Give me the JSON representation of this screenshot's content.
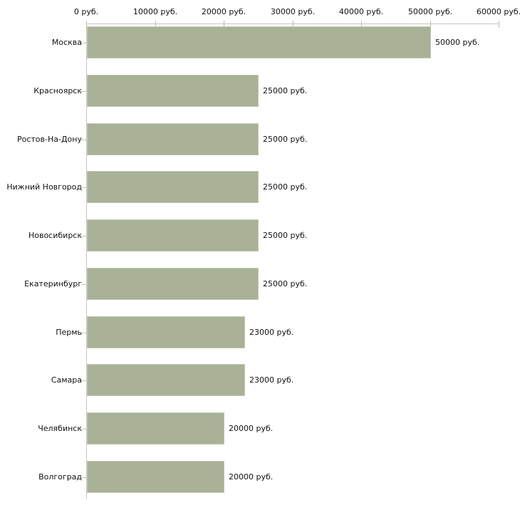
{
  "chart_data": {
    "type": "bar",
    "orientation": "horizontal",
    "title": "",
    "categories": [
      "Москва",
      "Красноярск",
      "Ростов-На-Дону",
      "Нижний Новгород",
      "Новосибирск",
      "Екатеринбург",
      "Пермь",
      "Самара",
      "Челябинск",
      "Волгоград"
    ],
    "values": [
      50000,
      25000,
      25000,
      25000,
      25000,
      25000,
      23000,
      23000,
      20000,
      20000
    ],
    "value_labels": [
      "50000 руб.",
      "25000 руб.",
      "25000 руб.",
      "25000 руб.",
      "25000 руб.",
      "25000 руб.",
      "23000 руб.",
      "23000 руб.",
      "20000 руб.",
      "20000 руб."
    ],
    "x_axis": {
      "position": "top",
      "range": [
        0,
        60000
      ],
      "tick_values": [
        0,
        10000,
        20000,
        30000,
        40000,
        50000,
        60000
      ],
      "tick_labels": [
        "0 руб.",
        "10000 руб.",
        "20000 руб.",
        "30000 руб.",
        "40000 руб.",
        "50000 руб.",
        "60000 руб."
      ],
      "unit": "руб."
    },
    "legend": "none",
    "grid": "off",
    "colors": {
      "background": "#ffffff",
      "bar_fill": "#a9b197",
      "bar_outline": "#c3c8b2",
      "axis_line": "#c6c6c6",
      "tick_mark": "#c2bf9e",
      "text": "#111111"
    }
  }
}
